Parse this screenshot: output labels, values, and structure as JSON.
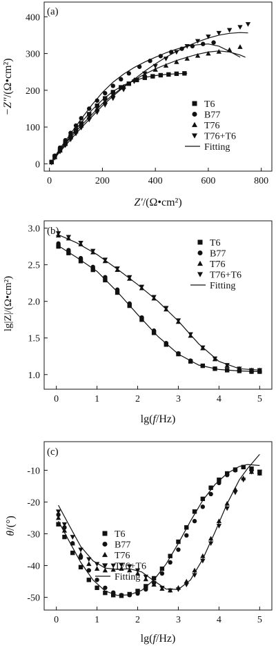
{
  "chart_data": [
    {
      "type": "scatter",
      "panel_label": "(a)",
      "xlabel_main": "Z′",
      "xlabel_unit": "/(Ω•cm²)",
      "ylabel_main": "−Z″",
      "ylabel_unit": "/(Ω•cm²)",
      "xlim": [
        -20,
        840
      ],
      "ylim": [
        -20,
        440
      ],
      "xticks": [
        0,
        200,
        400,
        600,
        800
      ],
      "yticks": [
        0,
        100,
        200,
        300,
        400
      ],
      "grid": false,
      "legend_position": "right",
      "series": [
        {
          "name": "T6",
          "marker": "square",
          "x": [
            8,
            20,
            40,
            60,
            80,
            100,
            120,
            150,
            180,
            210,
            240,
            270,
            300,
            330,
            360,
            390,
            420,
            450,
            480,
            510
          ],
          "y": [
            5,
            20,
            38,
            56,
            74,
            92,
            110,
            135,
            158,
            178,
            195,
            208,
            218,
            228,
            234,
            238,
            241,
            243,
            245,
            246
          ]
        },
        {
          "name": "B77",
          "marker": "circle",
          "x": [
            8,
            20,
            40,
            60,
            80,
            100,
            120,
            150,
            180,
            210,
            240,
            270,
            300,
            340,
            380,
            420,
            460,
            500,
            540,
            580,
            620
          ],
          "y": [
            5,
            22,
            44,
            64,
            84,
            104,
            124,
            150,
            172,
            192,
            212,
            230,
            246,
            264,
            280,
            293,
            304,
            313,
            320,
            326,
            330
          ]
        },
        {
          "name": "T76",
          "marker": "triangle-up",
          "x": [
            8,
            20,
            40,
            60,
            80,
            100,
            120,
            150,
            180,
            210,
            240,
            280,
            320,
            360,
            400,
            440,
            480,
            520,
            560,
            600,
            640,
            680,
            720
          ],
          "y": [
            4,
            18,
            36,
            54,
            72,
            88,
            104,
            128,
            150,
            170,
            188,
            210,
            228,
            243,
            256,
            267,
            277,
            286,
            294,
            300,
            305,
            310,
            318
          ]
        },
        {
          "name": "T76+T6",
          "marker": "triangle-down",
          "x": [
            8,
            20,
            40,
            60,
            80,
            100,
            120,
            150,
            180,
            210,
            240,
            280,
            320,
            360,
            400,
            440,
            480,
            520,
            560,
            600,
            640,
            680,
            720,
            750
          ],
          "y": [
            3,
            16,
            33,
            50,
            66,
            82,
            98,
            120,
            140,
            160,
            178,
            202,
            224,
            246,
            266,
            286,
            304,
            320,
            334,
            346,
            356,
            364,
            372,
            380
          ]
        }
      ],
      "fits": [
        {
          "x": [
            5,
            40,
            80,
            120,
            160,
            200,
            240,
            280,
            320,
            360,
            400,
            440,
            480,
            520
          ],
          "y": [
            2,
            38,
            76,
            112,
            146,
            174,
            197,
            214,
            226,
            235,
            240,
            243,
            245,
            246
          ]
        },
        {
          "x": [
            5,
            40,
            80,
            120,
            160,
            200,
            240,
            280,
            320,
            360,
            400,
            440,
            480,
            520,
            560,
            600,
            640,
            680,
            720
          ],
          "y": [
            2,
            42,
            82,
            122,
            160,
            194,
            222,
            244,
            262,
            277,
            290,
            302,
            312,
            320,
            324,
            326,
            320,
            306,
            290
          ]
        },
        {
          "x": [
            5,
            40,
            80,
            120,
            160,
            200,
            240,
            280,
            320,
            360,
            400,
            440,
            480,
            520,
            560,
            600,
            640,
            680,
            720,
            740
          ],
          "y": [
            2,
            36,
            72,
            104,
            134,
            164,
            188,
            210,
            228,
            244,
            258,
            270,
            281,
            290,
            298,
            304,
            307,
            304,
            296,
            290
          ]
        },
        {
          "x": [
            5,
            40,
            80,
            120,
            160,
            200,
            240,
            280,
            320,
            360,
            400,
            440,
            480,
            520,
            560,
            600,
            640,
            680,
            720,
            750
          ],
          "y": [
            2,
            33,
            66,
            98,
            128,
            158,
            184,
            208,
            230,
            252,
            272,
            290,
            306,
            320,
            332,
            342,
            350,
            355,
            357,
            356
          ]
        }
      ]
    },
    {
      "type": "scatter",
      "panel_label": "(b)",
      "xlabel_main": "lg(",
      "xlabel_ital": "f",
      "xlabel_tail": "/Hz)",
      "ylabel_main": "lg|Z|/(Ω•cm²)",
      "xlim": [
        -0.3,
        5.3
      ],
      "ylim": [
        0.8,
        3.1
      ],
      "xticks": [
        0,
        1,
        2,
        3,
        4,
        5
      ],
      "yticks": [
        1.0,
        1.5,
        2.0,
        2.5,
        3.0
      ],
      "grid": false,
      "legend_position": "top-right",
      "series": [
        {
          "name": "T6",
          "marker": "square",
          "x": [
            0.05,
            0.3,
            0.6,
            0.9,
            1.2,
            1.5,
            1.8,
            2.1,
            2.4,
            2.7,
            3.0,
            3.3,
            3.6,
            3.9,
            4.2,
            4.5,
            4.8,
            5.0
          ],
          "y": [
            2.75,
            2.66,
            2.55,
            2.43,
            2.29,
            2.12,
            1.94,
            1.75,
            1.57,
            1.41,
            1.28,
            1.18,
            1.12,
            1.08,
            1.06,
            1.05,
            1.04,
            1.04
          ]
        },
        {
          "name": "B77",
          "marker": "circle",
          "x": [
            0.05,
            0.3,
            0.6,
            0.9,
            1.2,
            1.5,
            1.8,
            2.1,
            2.4,
            2.7,
            3.0,
            3.3,
            3.6,
            3.9,
            4.2,
            4.5,
            4.8,
            5.0
          ],
          "y": [
            2.79,
            2.7,
            2.59,
            2.47,
            2.33,
            2.16,
            1.97,
            1.78,
            1.6,
            1.43,
            1.29,
            1.19,
            1.12,
            1.08,
            1.06,
            1.05,
            1.04,
            1.04
          ]
        },
        {
          "name": "T76",
          "marker": "triangle-up",
          "x": [
            0.05,
            0.3,
            0.6,
            0.9,
            1.2,
            1.5,
            1.8,
            2.1,
            2.4,
            2.7,
            3.0,
            3.3,
            3.6,
            3.9,
            4.2,
            4.5,
            4.8,
            5.0
          ],
          "y": [
            2.9,
            2.86,
            2.78,
            2.67,
            2.55,
            2.43,
            2.31,
            2.18,
            2.04,
            1.89,
            1.72,
            1.53,
            1.36,
            1.21,
            1.12,
            1.08,
            1.06,
            1.06
          ]
        },
        {
          "name": "T76+T6",
          "marker": "triangle-down",
          "x": [
            0.05,
            0.3,
            0.6,
            0.9,
            1.2,
            1.5,
            1.8,
            2.1,
            2.4,
            2.7,
            3.0,
            3.3,
            3.6,
            3.9,
            4.2,
            4.5,
            4.8,
            5.0
          ],
          "y": [
            2.93,
            2.88,
            2.8,
            2.69,
            2.57,
            2.45,
            2.33,
            2.2,
            2.06,
            1.91,
            1.74,
            1.55,
            1.37,
            1.22,
            1.13,
            1.08,
            1.06,
            1.06
          ]
        }
      ],
      "fits": [
        {
          "x": [
            0.05,
            0.5,
            1.0,
            1.5,
            2.0,
            2.5,
            3.0,
            3.5,
            4.0,
            4.5,
            5.0
          ],
          "y": [
            2.76,
            2.6,
            2.41,
            2.13,
            1.82,
            1.52,
            1.28,
            1.13,
            1.07,
            1.05,
            1.04
          ]
        },
        {
          "x": [
            0.05,
            0.5,
            1.0,
            1.5,
            2.0,
            2.5,
            3.0,
            3.5,
            4.0,
            4.5,
            5.0
          ],
          "y": [
            2.91,
            2.8,
            2.64,
            2.44,
            2.23,
            2.0,
            1.73,
            1.42,
            1.18,
            1.08,
            1.06
          ]
        }
      ]
    },
    {
      "type": "scatter",
      "panel_label": "(c)",
      "xlabel_main": "lg(",
      "xlabel_ital": "f",
      "xlabel_tail": "/Hz)",
      "ylabel_main": "θ",
      "ylabel_unit": "/(°)",
      "xlim": [
        -0.3,
        5.3
      ],
      "ylim": [
        -54,
        -1
      ],
      "xticks": [
        0,
        1,
        2,
        3,
        4,
        5
      ],
      "yticks": [
        -10,
        -20,
        -30,
        -40,
        -50
      ],
      "grid": false,
      "legend_position": "bottom-left",
      "series": [
        {
          "name": "T6",
          "marker": "square",
          "x": [
            0.05,
            0.2,
            0.4,
            0.6,
            0.8,
            1.0,
            1.2,
            1.4,
            1.6,
            1.8,
            2.0,
            2.2,
            2.4,
            2.6,
            2.8,
            3.0,
            3.2,
            3.4,
            3.6,
            3.8,
            4.0,
            4.2,
            4.4,
            4.6,
            4.8,
            5.0
          ],
          "y": [
            -27,
            -31,
            -36,
            -40.5,
            -44.5,
            -47,
            -48.6,
            -49.3,
            -49.5,
            -49,
            -48,
            -46.5,
            -44,
            -41,
            -37,
            -32.5,
            -28,
            -23,
            -19,
            -15.5,
            -13,
            -11,
            -9.8,
            -9,
            -9.5,
            -10.5
          ]
        },
        {
          "name": "B77",
          "marker": "circle",
          "x": [
            0.05,
            0.2,
            0.4,
            0.6,
            0.8,
            1.0,
            1.2,
            1.4,
            1.6,
            1.8,
            2.0,
            2.2,
            2.4,
            2.6,
            2.8,
            3.0,
            3.2,
            3.4,
            3.6,
            3.8,
            4.0,
            4.2,
            4.4,
            4.6,
            4.8,
            5.0
          ],
          "y": [
            -24,
            -28,
            -33,
            -37.5,
            -41.5,
            -44.5,
            -47,
            -48.5,
            -49.3,
            -49.3,
            -48.8,
            -47.5,
            -45.5,
            -42.5,
            -39,
            -35,
            -30.5,
            -26,
            -21.5,
            -17.5,
            -14,
            -11.5,
            -10,
            -9,
            -10,
            -11
          ]
        },
        {
          "name": "T76",
          "marker": "triangle-up",
          "x": [
            0.05,
            0.2,
            0.4,
            0.6,
            0.8,
            1.0,
            1.2,
            1.4,
            1.6,
            1.8,
            2.0,
            2.2,
            2.4,
            2.6,
            2.8,
            3.0,
            3.2,
            3.4,
            3.6,
            3.8,
            4.0,
            4.2,
            4.4,
            4.6,
            4.8,
            5.0
          ],
          "y": [
            -25,
            -29,
            -33,
            -36.5,
            -39.5,
            -41,
            -41.5,
            -41.3,
            -41,
            -41.5,
            -42.5,
            -44.3,
            -46,
            -47.3,
            -47.8,
            -47,
            -45,
            -41.5,
            -37,
            -31.5,
            -26,
            -20.5,
            -16,
            -12.5,
            -10.5,
            -11
          ]
        },
        {
          "name": "T76+T6",
          "marker": "triangle-down",
          "x": [
            0.05,
            0.2,
            0.4,
            0.6,
            0.8,
            1.0,
            1.2,
            1.4,
            1.6,
            1.8,
            2.0,
            2.2,
            2.4,
            2.6,
            2.8,
            3.0,
            3.2,
            3.4,
            3.6,
            3.8,
            4.0,
            4.2,
            4.4,
            4.6,
            4.8,
            5.0
          ],
          "y": [
            -23,
            -27,
            -31,
            -35,
            -38,
            -39.5,
            -40,
            -40,
            -39.8,
            -40.2,
            -41.5,
            -43.5,
            -45.5,
            -47,
            -47.8,
            -47.5,
            -46,
            -43,
            -38.5,
            -33,
            -27.5,
            -22,
            -17,
            -13,
            -10.5,
            -10.5
          ]
        }
      ],
      "fits": [
        {
          "x": [
            0.05,
            0.3,
            0.6,
            0.9,
            1.2,
            1.5,
            1.8,
            2.1,
            2.4,
            2.7,
            3.0,
            3.3,
            3.6,
            3.9,
            4.2,
            4.5,
            4.7,
            5.0
          ],
          "y": [
            -26,
            -32,
            -39,
            -44.5,
            -48,
            -49.4,
            -49.2,
            -47.8,
            -44.5,
            -39.5,
            -33,
            -26,
            -19.5,
            -14.5,
            -11,
            -8.8,
            -8.2,
            -8.5
          ]
        },
        {
          "x": [
            0.05,
            0.3,
            0.6,
            0.9,
            1.2,
            1.5,
            1.8,
            2.1,
            2.4,
            2.7,
            3.0,
            3.3,
            3.6,
            3.9,
            4.2,
            4.5,
            4.7,
            5.0
          ],
          "y": [
            -21,
            -27,
            -34,
            -38.5,
            -40.8,
            -41.2,
            -41,
            -42,
            -44.8,
            -47.4,
            -47.5,
            -44.5,
            -38,
            -29.5,
            -20.5,
            -13,
            -9.5,
            -5
          ]
        }
      ]
    }
  ]
}
